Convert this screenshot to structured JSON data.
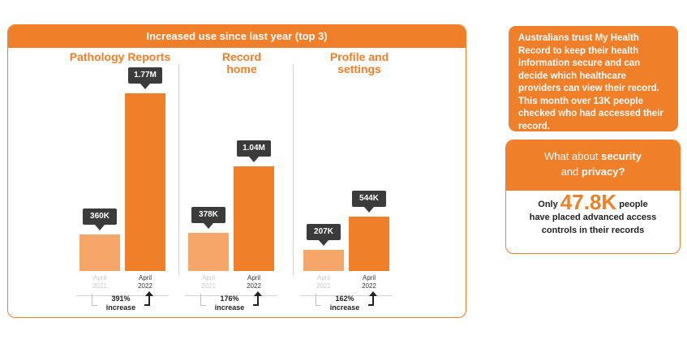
{
  "card": {
    "title": "Increased use since last year (top 3)"
  },
  "chart_data": {
    "type": "bar",
    "title": "Increased use since last year (top 3)",
    "groups": [
      {
        "name": "Pathology Reports",
        "categories": [
          "April 2021",
          "April 2022"
        ],
        "values": [
          360000,
          1770000
        ],
        "labels": [
          "360K",
          "1.77M"
        ],
        "increase_pct": "391%",
        "increase_word": "increase"
      },
      {
        "name": "Record home",
        "categories": [
          "April 2021",
          "April 2022"
        ],
        "values": [
          378000,
          1040000
        ],
        "labels": [
          "378K",
          "1.04M"
        ],
        "increase_pct": "176%",
        "increase_word": "increase"
      },
      {
        "name": "Profile and settings",
        "categories": [
          "April 2021",
          "April 2022"
        ],
        "values": [
          207000,
          544000
        ],
        "labels": [
          "207K",
          "544K"
        ],
        "increase_pct": "162%",
        "increase_word": "increase"
      }
    ],
    "x_labels": {
      "prev_month": "April",
      "prev_year": "2021",
      "cur_month": "April",
      "cur_year": "2022"
    },
    "colors": {
      "prev": "#f7a66a",
      "cur": "#f07f2a",
      "label_bg": "#3b3b3b"
    },
    "ymax": 1770000
  },
  "panels": [
    {
      "title_line1": "Pathology Reports",
      "title_line2": ""
    },
    {
      "title_line1": "Record",
      "title_line2": "home"
    },
    {
      "title_line1": "Profile and",
      "title_line2": "settings"
    }
  ],
  "info": {
    "text_a": "Australians trust My Health Record to keep their health information secure and can decide which healthcare providers can view their record. This month ",
    "text_hl": "over 13K",
    "text_b": " people checked who had accessed their record."
  },
  "security": {
    "q_a": "What about ",
    "q_b": "security",
    "q_c": "and ",
    "q_d": "privacy?",
    "only": "Only",
    "big": "47.8K",
    "people": "people",
    "line2": "have placed advanced access",
    "line3": "controls in their records"
  },
  "accent": "#f07f2a"
}
